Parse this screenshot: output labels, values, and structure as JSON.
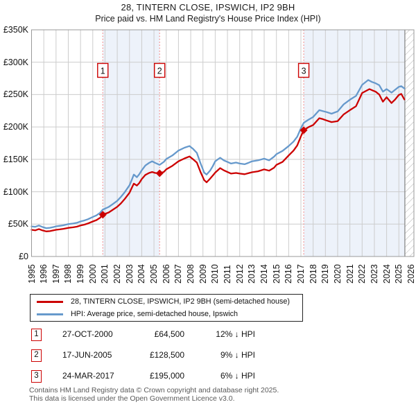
{
  "title": "28, TINTERN CLOSE, IPSWICH, IP2 9BH",
  "subtitle": "Price paid vs. HM Land Registry's House Price Index (HPI)",
  "colors": {
    "price_paid_line": "#cc0000",
    "hpi_line": "#6699cc",
    "shaded_band": "#edf2fa",
    "sale_marker_line": "#f4807f",
    "grid": "#cccccc",
    "plot_border": "#999999",
    "hatch_line": "#b0b0b0",
    "hatch_edge": "#888888",
    "number_box_border": "#cc0000"
  },
  "chart_data": {
    "type": "line",
    "xlim": [
      1995,
      2026.23
    ],
    "ylim": [
      0,
      350000
    ],
    "grid": true,
    "x_ticks": [
      "1995",
      "1996",
      "1997",
      "1998",
      "1999",
      "2000",
      "2001",
      "2002",
      "2003",
      "2004",
      "2005",
      "2006",
      "2007",
      "2008",
      "2009",
      "2010",
      "2011",
      "2012",
      "2013",
      "2014",
      "2015",
      "2016",
      "2017",
      "2018",
      "2019",
      "2020",
      "2021",
      "2022",
      "2023",
      "2024",
      "2025",
      "2026"
    ],
    "y_ticks": [
      {
        "value": 0,
        "label": "£0"
      },
      {
        "value": 50000,
        "label": "£50K"
      },
      {
        "value": 100000,
        "label": "£100K"
      },
      {
        "value": 150000,
        "label": "£150K"
      },
      {
        "value": 200000,
        "label": "£200K"
      },
      {
        "value": 250000,
        "label": "£250K"
      },
      {
        "value": 300000,
        "label": "£300K"
      },
      {
        "value": 350000,
        "label": "£350K"
      }
    ],
    "shaded_spans": [
      [
        2000.82,
        2005.46
      ],
      [
        2017.23,
        2025.49
      ]
    ],
    "hatch_span": [
      2025.49,
      2026.23
    ],
    "series": [
      {
        "name": "HPI: Average price, semi-detached house, Ipswich",
        "color": "#6699cc",
        "points": [
          [
            1995.0,
            46500
          ],
          [
            1995.3,
            45800
          ],
          [
            1995.6,
            47800
          ],
          [
            1995.9,
            45500
          ],
          [
            1996.2,
            43800
          ],
          [
            1996.5,
            44300
          ],
          [
            1996.8,
            45500
          ],
          [
            1997.0,
            46600
          ],
          [
            1997.3,
            47300
          ],
          [
            1997.6,
            48200
          ],
          [
            1998.0,
            50000
          ],
          [
            1998.4,
            51000
          ],
          [
            1998.7,
            52000
          ],
          [
            1999.0,
            54000
          ],
          [
            1999.3,
            55500
          ],
          [
            1999.6,
            57500
          ],
          [
            2000.0,
            61000
          ],
          [
            2000.3,
            63500
          ],
          [
            2000.6,
            67500
          ],
          [
            2000.82,
            72500
          ],
          [
            2001.0,
            74000
          ],
          [
            2001.3,
            76500
          ],
          [
            2001.6,
            80500
          ],
          [
            2002.0,
            86000
          ],
          [
            2002.3,
            92000
          ],
          [
            2002.6,
            99000
          ],
          [
            2003.0,
            110000
          ],
          [
            2003.2,
            119000
          ],
          [
            2003.35,
            126500
          ],
          [
            2003.6,
            122500
          ],
          [
            2003.8,
            127000
          ],
          [
            2004.0,
            133000
          ],
          [
            2004.3,
            140500
          ],
          [
            2004.6,
            144500
          ],
          [
            2004.85,
            147000
          ],
          [
            2005.1,
            144500
          ],
          [
            2005.46,
            141500
          ],
          [
            2005.8,
            146000
          ],
          [
            2006.0,
            150500
          ],
          [
            2006.5,
            156000
          ],
          [
            2007.0,
            163500
          ],
          [
            2007.5,
            168000
          ],
          [
            2007.9,
            170500
          ],
          [
            2008.2,
            166000
          ],
          [
            2008.5,
            160000
          ],
          [
            2008.8,
            144000
          ],
          [
            2009.1,
            129500
          ],
          [
            2009.3,
            126500
          ],
          [
            2009.6,
            133000
          ],
          [
            2009.8,
            139500
          ],
          [
            2010.0,
            147000
          ],
          [
            2010.4,
            152500
          ],
          [
            2010.7,
            148500
          ],
          [
            2011.0,
            146000
          ],
          [
            2011.3,
            143500
          ],
          [
            2011.7,
            145000
          ],
          [
            2012.0,
            143500
          ],
          [
            2012.4,
            142500
          ],
          [
            2012.7,
            144500
          ],
          [
            2013.0,
            147000
          ],
          [
            2013.5,
            148500
          ],
          [
            2014.0,
            151000
          ],
          [
            2014.4,
            148500
          ],
          [
            2014.8,
            154000
          ],
          [
            2015.0,
            158000
          ],
          [
            2015.5,
            163000
          ],
          [
            2016.0,
            170500
          ],
          [
            2016.4,
            177500
          ],
          [
            2016.7,
            185000
          ],
          [
            2017.0,
            198000
          ],
          [
            2017.23,
            206500
          ],
          [
            2017.6,
            211000
          ],
          [
            2018.0,
            215500
          ],
          [
            2018.5,
            226000
          ],
          [
            2018.8,
            224500
          ],
          [
            2019.1,
            223000
          ],
          [
            2019.5,
            220500
          ],
          [
            2020.0,
            224000
          ],
          [
            2020.5,
            235000
          ],
          [
            2021.0,
            242000
          ],
          [
            2021.5,
            248000
          ],
          [
            2022.0,
            265000
          ],
          [
            2022.5,
            272500
          ],
          [
            2022.8,
            269500
          ],
          [
            2023.1,
            267500
          ],
          [
            2023.4,
            264500
          ],
          [
            2023.7,
            254500
          ],
          [
            2024.0,
            258500
          ],
          [
            2024.4,
            253000
          ],
          [
            2024.7,
            257500
          ],
          [
            2025.0,
            262000
          ],
          [
            2025.2,
            263000
          ],
          [
            2025.45,
            259500
          ]
        ]
      },
      {
        "name": "28, TINTERN CLOSE, IPSWICH, IP2 9BH (semi-detached house)",
        "color": "#cc0000",
        "points": [
          [
            1995.0,
            41200
          ],
          [
            1995.3,
            40300
          ],
          [
            1995.6,
            42400
          ],
          [
            1995.9,
            40200
          ],
          [
            1996.2,
            38700
          ],
          [
            1996.5,
            39200
          ],
          [
            1996.8,
            40300
          ],
          [
            1997.0,
            41200
          ],
          [
            1997.3,
            41900
          ],
          [
            1997.6,
            42700
          ],
          [
            1998.0,
            44200
          ],
          [
            1998.4,
            45100
          ],
          [
            1998.7,
            46000
          ],
          [
            1999.0,
            47800
          ],
          [
            1999.3,
            49100
          ],
          [
            1999.6,
            50900
          ],
          [
            2000.0,
            54000
          ],
          [
            2000.3,
            56200
          ],
          [
            2000.6,
            59800
          ],
          [
            2000.82,
            64500
          ],
          [
            2001.0,
            65800
          ],
          [
            2001.3,
            68000
          ],
          [
            2001.6,
            71700
          ],
          [
            2002.0,
            76700
          ],
          [
            2002.3,
            82000
          ],
          [
            2002.6,
            88500
          ],
          [
            2003.0,
            98500
          ],
          [
            2003.2,
            106500
          ],
          [
            2003.35,
            112500
          ],
          [
            2003.6,
            109500
          ],
          [
            2003.8,
            113500
          ],
          [
            2004.0,
            119500
          ],
          [
            2004.3,
            126000
          ],
          [
            2004.6,
            129000
          ],
          [
            2004.85,
            130500
          ],
          [
            2005.1,
            129000
          ],
          [
            2005.46,
            128500
          ],
          [
            2005.8,
            130500
          ],
          [
            2006.0,
            134500
          ],
          [
            2006.5,
            140000
          ],
          [
            2007.0,
            147000
          ],
          [
            2007.5,
            151500
          ],
          [
            2007.9,
            154500
          ],
          [
            2008.2,
            150000
          ],
          [
            2008.5,
            145000
          ],
          [
            2008.8,
            130500
          ],
          [
            2009.1,
            118000
          ],
          [
            2009.3,
            114500
          ],
          [
            2009.6,
            120500
          ],
          [
            2009.8,
            125000
          ],
          [
            2010.0,
            129500
          ],
          [
            2010.4,
            136500
          ],
          [
            2010.7,
            133000
          ],
          [
            2011.0,
            130500
          ],
          [
            2011.3,
            128000
          ],
          [
            2011.7,
            129000
          ],
          [
            2012.0,
            128000
          ],
          [
            2012.4,
            127000
          ],
          [
            2012.7,
            128500
          ],
          [
            2013.0,
            130000
          ],
          [
            2013.5,
            131500
          ],
          [
            2014.0,
            134500
          ],
          [
            2014.4,
            132500
          ],
          [
            2014.8,
            137000
          ],
          [
            2015.0,
            141500
          ],
          [
            2015.5,
            146000
          ],
          [
            2016.0,
            156000
          ],
          [
            2016.4,
            163500
          ],
          [
            2016.7,
            171500
          ],
          [
            2017.0,
            185500
          ],
          [
            2017.23,
            195000
          ],
          [
            2017.6,
            199500
          ],
          [
            2018.0,
            203000
          ],
          [
            2018.5,
            213500
          ],
          [
            2018.8,
            212000
          ],
          [
            2019.1,
            210000
          ],
          [
            2019.5,
            207500
          ],
          [
            2020.0,
            209000
          ],
          [
            2020.5,
            219500
          ],
          [
            2021.0,
            226000
          ],
          [
            2021.5,
            232000
          ],
          [
            2022.0,
            252500
          ],
          [
            2022.6,
            258500
          ],
          [
            2022.9,
            256000
          ],
          [
            2023.1,
            254500
          ],
          [
            2023.4,
            250000
          ],
          [
            2023.7,
            239000
          ],
          [
            2024.0,
            246000
          ],
          [
            2024.4,
            237000
          ],
          [
            2024.7,
            242500
          ],
          [
            2025.0,
            249500
          ],
          [
            2025.2,
            251000
          ],
          [
            2025.45,
            242500
          ]
        ]
      }
    ]
  },
  "legend": [
    {
      "label": "28, TINTERN CLOSE, IPSWICH, IP2 9BH (semi-detached house)",
      "color": "#cc0000"
    },
    {
      "label": "HPI: Average price, semi-detached house, Ipswich",
      "color": "#6699cc"
    }
  ],
  "sales": [
    {
      "label": "1",
      "x": 2000.82,
      "price": 64500,
      "date": "27-OCT-2000",
      "price_label": "£64,500",
      "delta": "12% ↓ HPI"
    },
    {
      "label": "2",
      "x": 2005.46,
      "price": 128500,
      "date": "17-JUN-2005",
      "price_label": "£128,500",
      "delta": "9% ↓ HPI"
    },
    {
      "label": "3",
      "x": 2017.23,
      "price": 195000,
      "date": "24-MAR-2017",
      "price_label": "£195,000",
      "delta": "6% ↓ HPI"
    }
  ],
  "footer": {
    "line1": "Contains HM Land Registry data © Crown copyright and database right 2025.",
    "line2": "This data is licensed under the Open Government Licence v3.0."
  }
}
